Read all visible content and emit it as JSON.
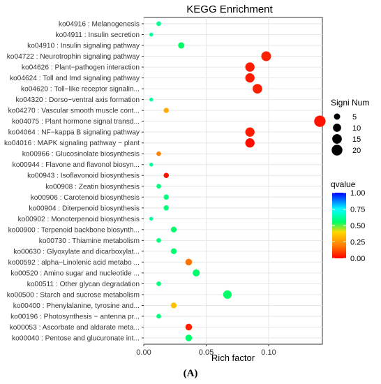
{
  "chart_data": {
    "type": "scatter",
    "title": "KEGG Enrichment",
    "xlabel": "Rich factor",
    "ylabel": "",
    "xlim": [
      0,
      0.143
    ],
    "xticks": [
      0.0,
      0.05,
      0.1
    ],
    "xtick_labels": [
      "0.00",
      "0.05",
      "0.10"
    ],
    "grid": true,
    "categories": [
      "ko04916 : Melanogenesis",
      "ko04911 : Insulin secretion",
      "ko04910 : Insulin signaling pathway",
      "ko04722 : Neurotrophin signaling pathway",
      "ko04626 : Plant−pathogen interaction",
      "ko04624 : Toll and Imd signaling pathway",
      "ko04620 : Toll−like receptor signalin...",
      "ko04320 : Dorso−ventral axis formation",
      "ko04270 : Vascular smooth muscle cont...",
      "ko04075 : Plant hormone signal transd...",
      "ko04064 : NF−kappa B signaling pathway",
      "ko04016 : MAPK signaling pathway − plant",
      "ko00966 : Glucosinolate biosynthesis",
      "ko00944 : Flavone and flavonol biosyn...",
      "ko00943 : Isoflavonoid biosynthesis",
      "ko00908 : Zeatin biosynthesis",
      "ko00906 : Carotenoid biosynthesis",
      "ko00904 : Diterpenoid biosynthesis",
      "ko00902 : Monoterpenoid biosynthesis",
      "ko00900 : Terpenoid backbone biosynth...",
      "ko00730 : Thiamine metabolism",
      "ko00630 : Glyoxylate and dicarboxylat...",
      "ko00592 : alpha−Linolenic acid metabo ...",
      "ko00520 : Amino sugar and nucleotide ...",
      "ko00511 : Other glycan degradation",
      "ko00500 : Starch and sucrose metabolism",
      "ko00400 : Phenylalanine, tyrosine and...",
      "ko00196 : Photosynthesis − antenna pr...",
      "ko00053 : Ascorbate and aldarate meta...",
      "ko00040 : Pentose and glucuronate int..."
    ],
    "points": [
      {
        "x": 0.012,
        "size": 2,
        "q": 0.6
      },
      {
        "x": 0.006,
        "size": 1,
        "q": 0.62
      },
      {
        "x": 0.03,
        "size": 5,
        "q": 0.55
      },
      {
        "x": 0.098,
        "size": 16,
        "q": 0.05
      },
      {
        "x": 0.085,
        "size": 14,
        "q": 0.04
      },
      {
        "x": 0.085,
        "size": 14,
        "q": 0.04
      },
      {
        "x": 0.091,
        "size": 15,
        "q": 0.05
      },
      {
        "x": 0.006,
        "size": 1,
        "q": 0.62
      },
      {
        "x": 0.018,
        "size": 3,
        "q": 0.3
      },
      {
        "x": 0.141,
        "size": 23,
        "q": 0.03
      },
      {
        "x": 0.085,
        "size": 14,
        "q": 0.04
      },
      {
        "x": 0.085,
        "size": 14,
        "q": 0.02
      },
      {
        "x": 0.012,
        "size": 2,
        "q": 0.2
      },
      {
        "x": 0.006,
        "size": 1,
        "q": 0.62
      },
      {
        "x": 0.018,
        "size": 3,
        "q": 0.03
      },
      {
        "x": 0.012,
        "size": 2,
        "q": 0.58
      },
      {
        "x": 0.018,
        "size": 3,
        "q": 0.58
      },
      {
        "x": 0.018,
        "size": 3,
        "q": 0.58
      },
      {
        "x": 0.006,
        "size": 1,
        "q": 0.62
      },
      {
        "x": 0.024,
        "size": 4,
        "q": 0.56
      },
      {
        "x": 0.012,
        "size": 2,
        "q": 0.58
      },
      {
        "x": 0.024,
        "size": 4,
        "q": 0.56
      },
      {
        "x": 0.036,
        "size": 6,
        "q": 0.18
      },
      {
        "x": 0.042,
        "size": 7,
        "q": 0.56
      },
      {
        "x": 0.012,
        "size": 2,
        "q": 0.58
      },
      {
        "x": 0.067,
        "size": 11,
        "q": 0.55
      },
      {
        "x": 0.024,
        "size": 4,
        "q": 0.35
      },
      {
        "x": 0.012,
        "size": 2,
        "q": 0.58
      },
      {
        "x": 0.036,
        "size": 6,
        "q": 0.05
      },
      {
        "x": 0.036,
        "size": 6,
        "q": 0.56
      }
    ],
    "legend_size": {
      "title": "Signi Num",
      "values": [
        5,
        10,
        15,
        20
      ],
      "labels": [
        "5",
        "10",
        "15",
        "20"
      ]
    },
    "legend_color": {
      "title": "qvalue",
      "ticks": [
        1.0,
        0.75,
        0.5,
        0.25,
        0.0
      ],
      "tick_labels": [
        "1.00",
        "0.75",
        "0.50",
        "0.25",
        "0.00"
      ],
      "colors": [
        "#ff0000",
        "#ff8000",
        "#ffd700",
        "#00ff66",
        "#00ffff",
        "#0000ff"
      ]
    }
  },
  "panel_label": "(A)"
}
